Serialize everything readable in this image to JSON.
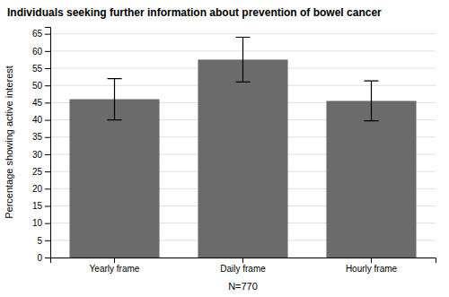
{
  "chart_data": {
    "type": "bar",
    "title": "Individuals seeking further information about prevention of bowel cancer",
    "xlabel": "N=770",
    "ylabel": "Percentage showing active interest",
    "categories": [
      "Yearly frame",
      "Daily frame",
      "Hourly frame"
    ],
    "values": [
      46.0,
      57.5,
      45.5
    ],
    "yerr_lower": [
      6.0,
      6.5,
      5.8
    ],
    "yerr_upper": [
      6.0,
      6.5,
      5.8
    ],
    "color": "#6b6b6b",
    "ylim": [
      0,
      67
    ],
    "yticks": [
      0,
      5,
      10,
      15,
      20,
      25,
      30,
      35,
      40,
      45,
      50,
      55,
      60,
      65
    ],
    "grid": true
  }
}
